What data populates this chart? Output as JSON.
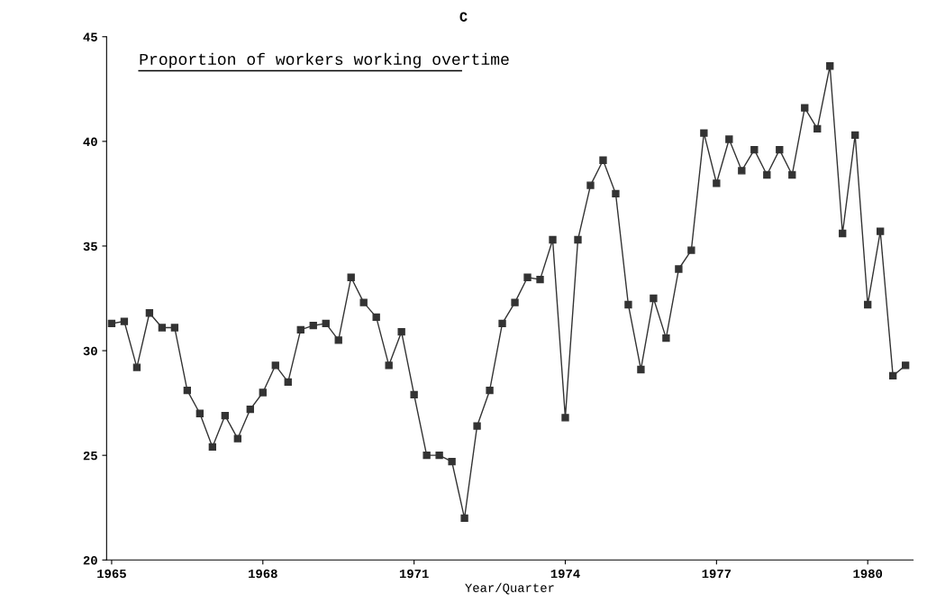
{
  "chart_data": {
    "type": "line",
    "title": "Proportion of workers working overtime",
    "xlabel": "Year/Quarter",
    "annotations": [
      "C"
    ],
    "x": [
      1965,
      1965.25,
      1965.5,
      1965.75,
      1966,
      1966.25,
      1966.5,
      1966.75,
      1967,
      1967.25,
      1967.5,
      1967.75,
      1968,
      1968.25,
      1968.5,
      1968.75,
      1969,
      1969.25,
      1969.5,
      1969.75,
      1970,
      1970.25,
      1970.5,
      1970.75,
      1971,
      1971.25,
      1971.5,
      1971.75,
      1972,
      1972.25,
      1972.5,
      1972.75,
      1973,
      1973.25,
      1973.5,
      1973.75,
      1974,
      1974.25,
      1974.5,
      1974.75,
      1975,
      1975.25,
      1975.5,
      1975.75,
      1976,
      1976.25,
      1976.5,
      1976.75,
      1977,
      1977.25,
      1977.5,
      1977.75,
      1978,
      1978.25,
      1978.5,
      1978.75,
      1979,
      1979.25,
      1979.5,
      1979.75,
      1980,
      1980.25,
      1980.5,
      1980.75
    ],
    "series": [
      {
        "color": "#333333",
        "values": [
          31.3,
          31.4,
          29.2,
          31.8,
          31.1,
          31.1,
          28.1,
          27.0,
          25.4,
          26.9,
          25.8,
          27.2,
          28.0,
          29.3,
          28.5,
          31.0,
          31.2,
          31.3,
          30.5,
          33.5,
          32.3,
          31.6,
          29.3,
          30.9,
          27.9,
          25.0,
          25.0,
          24.7,
          22.0,
          26.4,
          28.1,
          31.3,
          32.3,
          33.5,
          33.4,
          35.3,
          26.8,
          35.3,
          37.9,
          39.1,
          37.5,
          32.2,
          29.1,
          32.5,
          30.6,
          33.9,
          34.8,
          40.4,
          38.0,
          40.1,
          38.6,
          39.6,
          38.4,
          39.6,
          38.4,
          41.6,
          40.6,
          43.6,
          35.6,
          40.3,
          32.2,
          35.7,
          28.8,
          29.3
        ]
      }
    ],
    "xlim": [
      1964.9,
      1980.9
    ],
    "xticks": [
      1965,
      1968,
      1971,
      1974,
      1977,
      1980
    ],
    "ylim": [
      20,
      45
    ],
    "yticks": [
      20,
      25,
      30,
      35,
      40,
      45
    ],
    "marker": "square",
    "line_style": "solid"
  }
}
